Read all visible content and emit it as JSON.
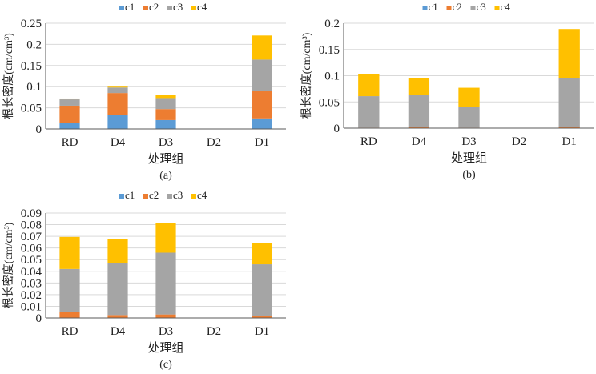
{
  "colors": {
    "c1": "#5B9BD5",
    "c2": "#ED7D31",
    "c3": "#A5A5A5",
    "c4": "#FFC000"
  },
  "chart_data": [
    {
      "type": "bar",
      "stacked": true,
      "caption": "(a)",
      "xlabel": "处理组",
      "ylabel": "根长密度(cm/cm³)",
      "ylim": [
        0,
        0.25
      ],
      "yticks": [
        "0",
        "0.05",
        "0.1",
        "0.15",
        "0.2",
        "0.25"
      ],
      "grid": true,
      "legend": "top",
      "categories": [
        "RD",
        "D4",
        "D3",
        "D2",
        "D1"
      ],
      "series": [
        {
          "name": "c1",
          "values": [
            0.015,
            0.034,
            0.021,
            0,
            0.025
          ]
        },
        {
          "name": "c2",
          "values": [
            0.04,
            0.051,
            0.026,
            0,
            0.064
          ]
        },
        {
          "name": "c3",
          "values": [
            0.015,
            0.013,
            0.026,
            0,
            0.075
          ]
        },
        {
          "name": "c4",
          "values": [
            0.002,
            0.002,
            0.008,
            0,
            0.057
          ]
        }
      ]
    },
    {
      "type": "bar",
      "stacked": true,
      "caption": "(b)",
      "xlabel": "处理组",
      "ylabel": "根长密度(cm/cm³)",
      "ylim": [
        0,
        0.2
      ],
      "yticks": [
        "0",
        "0.05",
        "0.1",
        "0.15",
        "0.2"
      ],
      "grid": true,
      "legend": "top",
      "categories": [
        "RD",
        "D4",
        "D3",
        "D2",
        "D1"
      ],
      "series": [
        {
          "name": "c1",
          "values": [
            0,
            0,
            0,
            0,
            0
          ]
        },
        {
          "name": "c2",
          "values": [
            0.001,
            0.003,
            0.001,
            0,
            0.002
          ]
        },
        {
          "name": "c3",
          "values": [
            0.06,
            0.06,
            0.04,
            0,
            0.094
          ]
        },
        {
          "name": "c4",
          "values": [
            0.042,
            0.032,
            0.036,
            0,
            0.093
          ]
        }
      ]
    },
    {
      "type": "bar",
      "stacked": true,
      "caption": "(c)",
      "xlabel": "处理组",
      "ylabel": "根长密度(cm/cm³)",
      "ylim": [
        0,
        0.09
      ],
      "yticks": [
        "0",
        "0.01",
        "0.02",
        "0.03",
        "0.04",
        "0.05",
        "0.06",
        "0.07",
        "0.08",
        "0.09"
      ],
      "grid": true,
      "legend": "top",
      "categories": [
        "RD",
        "D4",
        "D3",
        "D2",
        "D1"
      ],
      "series": [
        {
          "name": "c1",
          "values": [
            0,
            0,
            0,
            0,
            0
          ]
        },
        {
          "name": "c2",
          "values": [
            0.0055,
            0.0025,
            0.003,
            0,
            0.0014
          ]
        },
        {
          "name": "c3",
          "values": [
            0.0365,
            0.0445,
            0.053,
            0,
            0.0446
          ]
        },
        {
          "name": "c4",
          "values": [
            0.0275,
            0.021,
            0.0255,
            0,
            0.018
          ]
        }
      ]
    }
  ]
}
